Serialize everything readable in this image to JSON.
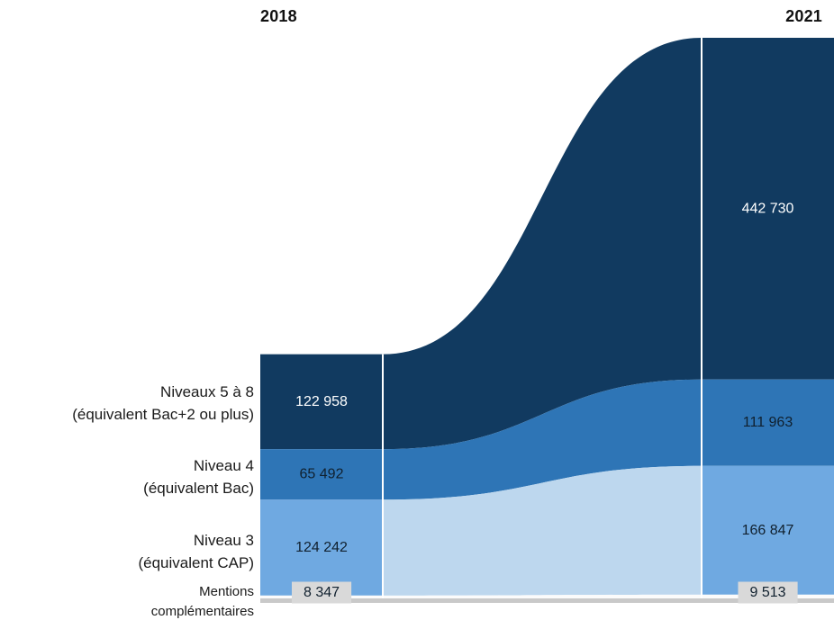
{
  "chart_data": {
    "type": "area",
    "title": "",
    "legend_position": "none",
    "x": [
      "2018",
      "2021"
    ],
    "separator_color": "#FFFFFF",
    "baseline_color": "#C9C9C9",
    "series": [
      {
        "name": "Niveaux 5 à 8 (équivalent Bac+2 ou plus)",
        "label_lines": [
          "Niveaux 5 à 8",
          "(équivalent Bac+2 ou plus)"
        ],
        "values": [
          122958,
          442730
        ],
        "display": [
          "122 958",
          "442 730"
        ],
        "bar_color": "#113A60",
        "flow_color": "#113A60",
        "value_color": "#FFFFFF"
      },
      {
        "name": "Niveau 4 (équivalent Bac)",
        "label_lines": [
          "Niveau 4",
          "(équivalent Bac)"
        ],
        "values": [
          65492,
          111963
        ],
        "display": [
          "65 492",
          "111 963"
        ],
        "bar_color": "#2E75B6",
        "flow_color": "#2E75B6",
        "value_color": "#10202E"
      },
      {
        "name": "Niveau 3 (équivalent CAP)",
        "label_lines": [
          "Niveau 3",
          "(équivalent CAP)"
        ],
        "values": [
          124242,
          166847
        ],
        "display": [
          "124 242",
          "166 847"
        ],
        "bar_color": "#6FA9E1",
        "flow_color": "#BDD7EE",
        "value_color": "#10202E"
      },
      {
        "name": "Mentions complémentaires",
        "label_lines": [
          "Mentions",
          "complémentaires"
        ],
        "values": [
          8347,
          9513
        ],
        "display": [
          "8 347",
          "9 513"
        ],
        "bar_color": "#FBFBFB",
        "flow_color": "#FBFBFB",
        "value_color": "#10202E",
        "value_bg": "#D9D9D9"
      }
    ]
  }
}
